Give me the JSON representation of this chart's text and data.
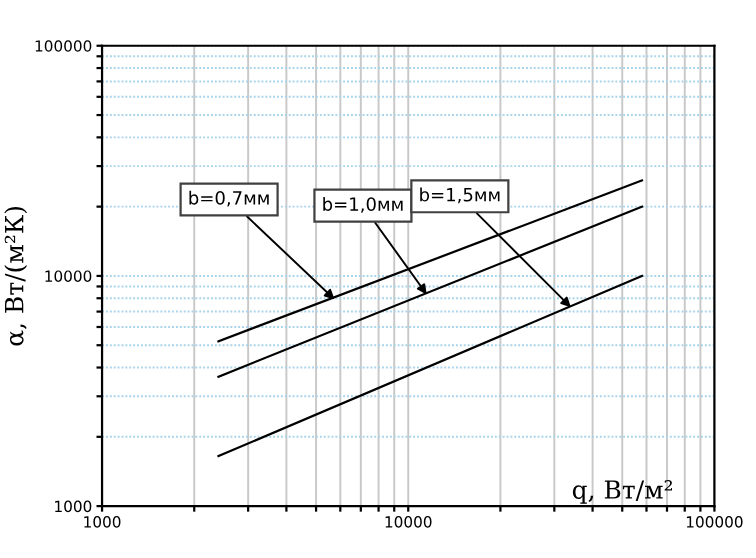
{
  "chart_data": {
    "type": "line",
    "log": "xy",
    "xlabel": "q, Вт/м²",
    "ylabel": "α, Вт/(м²К)",
    "xlim": [
      1000,
      100000
    ],
    "ylim": [
      1000,
      100000
    ],
    "xticks": [
      1000,
      {
        "value": 2000,
        "label": null
      },
      {
        "value": 3000,
        "label": null
      },
      {
        "value": 4000,
        "label": null
      },
      {
        "value": 5000,
        "label": null
      },
      {
        "value": 6000,
        "label": null
      },
      {
        "value": 7000,
        "label": null
      },
      {
        "value": 8000,
        "label": null
      },
      {
        "value": 9000,
        "label": null
      },
      10000,
      {
        "value": 20000,
        "label": null
      },
      {
        "value": 30000,
        "label": null
      },
      {
        "value": 40000,
        "label": null
      },
      {
        "value": 50000,
        "label": null
      },
      {
        "value": 60000,
        "label": null
      },
      {
        "value": 70000,
        "label": null
      },
      {
        "value": 80000,
        "label": null
      },
      {
        "value": 90000,
        "label": null
      },
      100000
    ],
    "yticks": [
      1000,
      {
        "value": 2000,
        "label": null
      },
      {
        "value": 3000,
        "label": null
      },
      {
        "value": 4000,
        "label": null
      },
      {
        "value": 5000,
        "label": null
      },
      {
        "value": 6000,
        "label": null
      },
      {
        "value": 7000,
        "label": null
      },
      {
        "value": 8000,
        "label": null
      },
      {
        "value": 9000,
        "label": null
      },
      10000,
      {
        "value": 20000,
        "label": null
      },
      {
        "value": 30000,
        "label": null
      },
      {
        "value": 40000,
        "label": null
      },
      {
        "value": 50000,
        "label": null
      },
      {
        "value": 60000,
        "label": null
      },
      {
        "value": 70000,
        "label": null
      },
      {
        "value": 80000,
        "label": null
      },
      {
        "value": 90000,
        "label": null
      },
      100000
    ],
    "x": [
      2400,
      58000
    ],
    "grid": true,
    "marker": "none",
    "line_style": "solid",
    "series": [
      {
        "color": "#000000",
        "values": [
          5200,
          26000
        ]
      },
      {
        "color": "#000000",
        "values": [
          3650,
          20000
        ]
      },
      {
        "color": "#000000",
        "values": [
          1650,
          10000
        ]
      }
    ],
    "annotations": [
      {
        "text": "b=0,7мм",
        "x": 5750,
        "y": 7900
      },
      {
        "text": "b=1,0мм",
        "x": 11500,
        "y": 8300
      },
      {
        "text": "b=1,5мм",
        "x": 34000,
        "y": 7300
      }
    ]
  }
}
